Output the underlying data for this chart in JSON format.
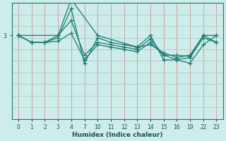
{
  "xlabel": "Humidex (Indice chaleur)",
  "background_color": "#cdecea",
  "line_color": "#1a7a70",
  "grid_color_v": "#d4a0a0",
  "grid_color_h": "#aad4d0",
  "xtick_labels": [
    "0",
    "1",
    "2",
    "3",
    "4",
    "7",
    "10",
    "11",
    "12",
    "13",
    "14",
    "15",
    "16",
    "19",
    "22",
    "23"
  ],
  "ytick_labels": [
    "3"
  ],
  "ytick_pos": [
    0.72
  ],
  "ylim": [
    0.0,
    1.0
  ],
  "lines": [
    {
      "xi": [
        0,
        1,
        2,
        3,
        4,
        5,
        6,
        7,
        8,
        9,
        10,
        11,
        12,
        13,
        14,
        15
      ],
      "y": [
        0.72,
        0.66,
        0.66,
        0.72,
        0.85,
        0.55,
        0.66,
        0.64,
        0.62,
        0.6,
        0.69,
        0.55,
        0.55,
        0.54,
        0.72,
        0.72
      ]
    },
    {
      "xi": [
        0,
        1,
        2,
        3,
        4,
        5,
        6,
        7,
        8,
        9,
        10,
        11,
        12,
        13,
        14,
        15
      ],
      "y": [
        0.72,
        0.66,
        0.66,
        0.7,
        0.95,
        0.48,
        0.7,
        0.66,
        0.64,
        0.62,
        0.64,
        0.57,
        0.53,
        0.55,
        0.72,
        0.66
      ]
    },
    {
      "xi": [
        0,
        3,
        4,
        6,
        9,
        10,
        11,
        12,
        13,
        14,
        15
      ],
      "y": [
        0.72,
        0.72,
        1.03,
        0.72,
        0.62,
        0.72,
        0.51,
        0.51,
        0.48,
        0.64,
        0.72
      ]
    },
    {
      "xi": [
        0,
        1,
        2,
        3,
        4,
        5,
        6,
        7,
        8,
        9,
        10,
        11,
        12,
        13,
        14,
        15
      ],
      "y": [
        0.72,
        0.66,
        0.66,
        0.67,
        0.74,
        0.51,
        0.64,
        0.62,
        0.6,
        0.58,
        0.66,
        0.55,
        0.51,
        0.53,
        0.7,
        0.66
      ]
    }
  ]
}
